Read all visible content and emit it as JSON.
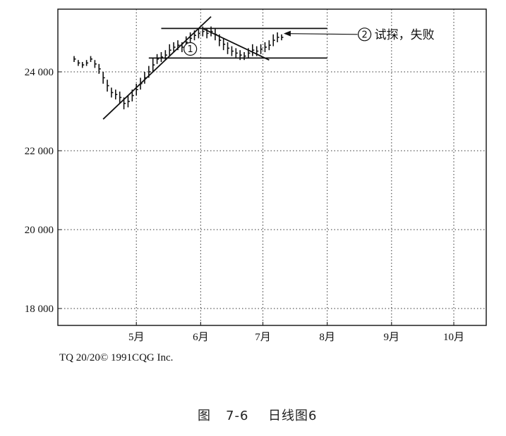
{
  "chart_data": {
    "type": "line",
    "subtype": "daily-bar-chart",
    "title": "",
    "xlabel": "",
    "ylabel": "",
    "ylim": [
      17700,
      26800
    ],
    "yticks": [
      18000,
      20000,
      22000,
      24000
    ],
    "ytick_labels": [
      "18 000",
      "20 000",
      "22 000",
      "24 000"
    ],
    "x_tick_labels": [
      "5月",
      "6月",
      "7月",
      "8月",
      "9月",
      "10月"
    ],
    "xlim_days": [
      0,
      184
    ],
    "x_month_days": [
      30,
      61,
      91,
      122,
      153,
      183
    ],
    "grid": true,
    "series": [
      {
        "daily_bars": [
          {
            "d": 0,
            "h": 24400,
            "l": 24250
          },
          {
            "d": 2,
            "h": 24300,
            "l": 24150
          },
          {
            "d": 4,
            "h": 24250,
            "l": 24100
          },
          {
            "d": 6,
            "h": 24300,
            "l": 24150
          },
          {
            "d": 8,
            "h": 24400,
            "l": 24250
          },
          {
            "d": 10,
            "h": 24300,
            "l": 24100
          },
          {
            "d": 12,
            "h": 24200,
            "l": 23950
          },
          {
            "d": 14,
            "h": 24000,
            "l": 23700
          },
          {
            "d": 16,
            "h": 23800,
            "l": 23500
          },
          {
            "d": 18,
            "h": 23600,
            "l": 23350
          },
          {
            "d": 20,
            "h": 23550,
            "l": 23300
          },
          {
            "d": 22,
            "h": 23500,
            "l": 23200
          },
          {
            "d": 24,
            "h": 23350,
            "l": 23050
          },
          {
            "d": 26,
            "h": 23400,
            "l": 23100
          },
          {
            "d": 28,
            "h": 23550,
            "l": 23250
          },
          {
            "d": 30,
            "h": 23700,
            "l": 23400
          },
          {
            "d": 32,
            "h": 23850,
            "l": 23550
          },
          {
            "d": 34,
            "h": 24000,
            "l": 23700
          },
          {
            "d": 36,
            "h": 24150,
            "l": 23850
          },
          {
            "d": 38,
            "h": 24350,
            "l": 24000
          },
          {
            "d": 40,
            "h": 24450,
            "l": 24200
          },
          {
            "d": 42,
            "h": 24500,
            "l": 24250
          },
          {
            "d": 44,
            "h": 24550,
            "l": 24300
          },
          {
            "d": 46,
            "h": 24700,
            "l": 24400
          },
          {
            "d": 48,
            "h": 24750,
            "l": 24500
          },
          {
            "d": 50,
            "h": 24800,
            "l": 24550
          },
          {
            "d": 52,
            "h": 24750,
            "l": 24500
          },
          {
            "d": 54,
            "h": 24900,
            "l": 24600
          },
          {
            "d": 56,
            "h": 25000,
            "l": 24700
          },
          {
            "d": 58,
            "h": 25050,
            "l": 24800
          },
          {
            "d": 60,
            "h": 25100,
            "l": 24850
          },
          {
            "d": 62,
            "h": 25150,
            "l": 24900
          },
          {
            "d": 64,
            "h": 25100,
            "l": 24850
          },
          {
            "d": 66,
            "h": 25150,
            "l": 24900
          },
          {
            "d": 68,
            "h": 25100,
            "l": 24800
          },
          {
            "d": 70,
            "h": 24950,
            "l": 24650
          },
          {
            "d": 72,
            "h": 24850,
            "l": 24550
          },
          {
            "d": 74,
            "h": 24750,
            "l": 24450
          },
          {
            "d": 76,
            "h": 24650,
            "l": 24400
          },
          {
            "d": 78,
            "h": 24600,
            "l": 24350
          },
          {
            "d": 80,
            "h": 24550,
            "l": 24300
          },
          {
            "d": 82,
            "h": 24500,
            "l": 24300
          },
          {
            "d": 84,
            "h": 24600,
            "l": 24350
          },
          {
            "d": 86,
            "h": 24700,
            "l": 24400
          },
          {
            "d": 88,
            "h": 24650,
            "l": 24400
          },
          {
            "d": 90,
            "h": 24700,
            "l": 24450
          },
          {
            "d": 92,
            "h": 24750,
            "l": 24500
          },
          {
            "d": 94,
            "h": 24800,
            "l": 24550
          },
          {
            "d": 96,
            "h": 24950,
            "l": 24650
          },
          {
            "d": 98,
            "h": 25000,
            "l": 24750
          },
          {
            "d": 100,
            "h": 24950,
            "l": 24800
          }
        ]
      }
    ],
    "trendlines": [
      {
        "kind": "uptrend",
        "from": [
          14,
          22800
        ],
        "to": [
          66,
          25400
        ]
      },
      {
        "kind": "resistance",
        "from": [
          42,
          25100
        ],
        "to": [
          122,
          25100
        ]
      },
      {
        "kind": "support",
        "from": [
          36,
          24350
        ],
        "to": [
          122,
          24350
        ]
      },
      {
        "kind": "down-trendline",
        "from": [
          62,
          25100
        ],
        "to": [
          94,
          24300
        ]
      }
    ],
    "markers": [
      {
        "label": "1",
        "at": [
          56,
          24580
        ]
      },
      {
        "label": "2",
        "at": [
          140,
          24950
        ]
      }
    ],
    "annotations": [
      {
        "text": "试探，失败",
        "marker": "2",
        "arrow_to": [
          101,
          24970
        ]
      }
    ],
    "credit": "TQ 20/20© 1991CQG Inc."
  },
  "caption": {
    "figure": "图",
    "number": "7-6",
    "title": "日线图6"
  }
}
